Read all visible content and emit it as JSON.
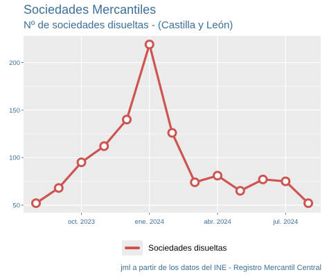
{
  "title": "Sociedades Mercantiles",
  "subtitle": "Nº de sociedades disueltas - (Castilla y León)",
  "caption": "jml a partir de los datos del INE - Registro Mercantil Central",
  "legend": {
    "label": "Sociedades disueltas"
  },
  "colors": {
    "line": "#cd5450",
    "panel": "#ebebeb",
    "grid": "#ffffff",
    "text": "#3b6e98"
  },
  "chart_data": {
    "type": "line",
    "x": [
      "2023-08",
      "2023-09",
      "2023-10",
      "2023-11",
      "2023-12",
      "2024-01",
      "2024-02",
      "2024-03",
      "2024-04",
      "2024-05",
      "2024-06",
      "2024-07",
      "2024-08"
    ],
    "series": [
      {
        "name": "Sociedades disueltas",
        "values": [
          52,
          68,
          95,
          112,
          140,
          219,
          126,
          74,
          81,
          65,
          77,
          75,
          52
        ]
      }
    ],
    "xticks": [
      {
        "x": "2023-10",
        "label": "oct. 2023"
      },
      {
        "x": "2024-01",
        "label": "ene. 2024"
      },
      {
        "x": "2024-04",
        "label": "abr. 2024"
      },
      {
        "x": "2024-07",
        "label": "jul. 2024"
      }
    ],
    "yticks": [
      50,
      100,
      150,
      200
    ],
    "ylim": [
      42,
      228
    ],
    "grid": true,
    "legend_position": "bottom"
  }
}
